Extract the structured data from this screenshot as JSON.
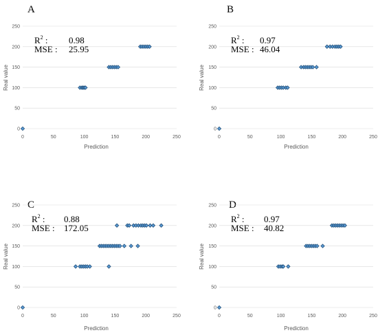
{
  "colors": {
    "marker_fill": "#5b9bd5",
    "marker_stroke": "#1f4e79",
    "grid": "#d9d9d9",
    "tick_text": "#595959"
  },
  "chart_data": [
    {
      "type": "scatter",
      "panel_label": "A",
      "xlabel": "Prediction",
      "ylabel": "Real value",
      "xlim": [
        0,
        250
      ],
      "ylim": [
        0,
        250
      ],
      "xticks": [
        "0",
        "50",
        "100",
        "150",
        "200",
        "250"
      ],
      "yticks": [
        "0",
        "50",
        "100",
        "150",
        "200",
        "250"
      ],
      "grid": "horizontal",
      "r2_label": "R",
      "r2_sup": "2",
      "r2_colon": ":",
      "r2_value": "0.98",
      "mse_label": "MSE :",
      "mse_value": "25.95",
      "points": [
        [
          0,
          0
        ],
        [
          93,
          100
        ],
        [
          96,
          100
        ],
        [
          98,
          100
        ],
        [
          100,
          100
        ],
        [
          102,
          100
        ],
        [
          140,
          150
        ],
        [
          143,
          150
        ],
        [
          146,
          150
        ],
        [
          149,
          150
        ],
        [
          152,
          150
        ],
        [
          155,
          150
        ],
        [
          191,
          200
        ],
        [
          194,
          200
        ],
        [
          197,
          200
        ],
        [
          200,
          200
        ],
        [
          203,
          200
        ],
        [
          206,
          200
        ]
      ]
    },
    {
      "type": "scatter",
      "panel_label": "B",
      "xlabel": "Prediction",
      "ylabel": "Real value",
      "xlim": [
        0,
        250
      ],
      "ylim": [
        0,
        250
      ],
      "xticks": [
        "0",
        "50",
        "100",
        "150",
        "200",
        "250"
      ],
      "yticks": [
        "0",
        "50",
        "100",
        "150",
        "200",
        "250"
      ],
      "grid": "horizontal",
      "r2_label": "R",
      "r2_sup": "2",
      "r2_colon": ":",
      "r2_value": "0.97",
      "mse_label": "MSE :",
      "mse_value": "46.04",
      "points": [
        [
          0,
          0
        ],
        [
          95,
          100
        ],
        [
          98,
          100
        ],
        [
          101,
          100
        ],
        [
          104,
          100
        ],
        [
          108,
          100
        ],
        [
          111,
          100
        ],
        [
          133,
          150
        ],
        [
          137,
          150
        ],
        [
          140,
          150
        ],
        [
          143,
          150
        ],
        [
          146,
          150
        ],
        [
          149,
          150
        ],
        [
          152,
          150
        ],
        [
          158,
          150
        ],
        [
          175,
          200
        ],
        [
          180,
          200
        ],
        [
          184,
          200
        ],
        [
          188,
          200
        ],
        [
          191,
          200
        ],
        [
          194,
          200
        ],
        [
          197,
          200
        ]
      ]
    },
    {
      "type": "scatter",
      "panel_label": "C",
      "xlabel": "Prediction",
      "ylabel": "Real value",
      "xlim": [
        0,
        250
      ],
      "ylim": [
        0,
        250
      ],
      "xticks": [
        "0",
        "50",
        "100",
        "150",
        "200",
        "250"
      ],
      "yticks": [
        "0",
        "50",
        "100",
        "150",
        "200",
        "250"
      ],
      "grid": "horizontal",
      "r2_label": "R",
      "r2_sup": "2",
      "r2_colon": ":",
      "r2_value": "0.88",
      "mse_label": "MSE :",
      "mse_value": "172.05",
      "points": [
        [
          0,
          0
        ],
        [
          86,
          100
        ],
        [
          93,
          100
        ],
        [
          96,
          100
        ],
        [
          99,
          100
        ],
        [
          102,
          100
        ],
        [
          105,
          100
        ],
        [
          109,
          100
        ],
        [
          140,
          100
        ],
        [
          125,
          150
        ],
        [
          128,
          150
        ],
        [
          131,
          150
        ],
        [
          134,
          150
        ],
        [
          137,
          150
        ],
        [
          140,
          150
        ],
        [
          143,
          150
        ],
        [
          146,
          150
        ],
        [
          149,
          150
        ],
        [
          152,
          150
        ],
        [
          155,
          150
        ],
        [
          158,
          150
        ],
        [
          165,
          150
        ],
        [
          176,
          150
        ],
        [
          187,
          150
        ],
        [
          153,
          200
        ],
        [
          170,
          200
        ],
        [
          173,
          200
        ],
        [
          180,
          200
        ],
        [
          184,
          200
        ],
        [
          188,
          200
        ],
        [
          192,
          200
        ],
        [
          195,
          200
        ],
        [
          198,
          200
        ],
        [
          201,
          200
        ],
        [
          207,
          200
        ],
        [
          212,
          200
        ],
        [
          225,
          200
        ]
      ]
    },
    {
      "type": "scatter",
      "panel_label": "D",
      "xlabel": "Prediction",
      "ylabel": "Real value",
      "xlim": [
        0,
        250
      ],
      "ylim": [
        0,
        250
      ],
      "xticks": [
        "0",
        "50",
        "100",
        "150",
        "200",
        "250"
      ],
      "yticks": [
        "0",
        "50",
        "100",
        "150",
        "200",
        "250"
      ],
      "grid": "horizontal",
      "r2_label": "R",
      "r2_sup": "2",
      "r2_colon": ":",
      "r2_value": "0.97",
      "mse_label": "MSE :",
      "mse_value": "40.82",
      "points": [
        [
          0,
          0
        ],
        [
          96,
          100
        ],
        [
          99,
          100
        ],
        [
          102,
          100
        ],
        [
          104,
          100
        ],
        [
          112,
          100
        ],
        [
          141,
          150
        ],
        [
          144,
          150
        ],
        [
          147,
          150
        ],
        [
          150,
          150
        ],
        [
          153,
          150
        ],
        [
          156,
          150
        ],
        [
          159,
          150
        ],
        [
          168,
          150
        ],
        [
          183,
          200
        ],
        [
          186,
          200
        ],
        [
          189,
          200
        ],
        [
          192,
          200
        ],
        [
          195,
          200
        ],
        [
          198,
          200
        ],
        [
          201,
          200
        ],
        [
          204,
          200
        ]
      ]
    }
  ]
}
